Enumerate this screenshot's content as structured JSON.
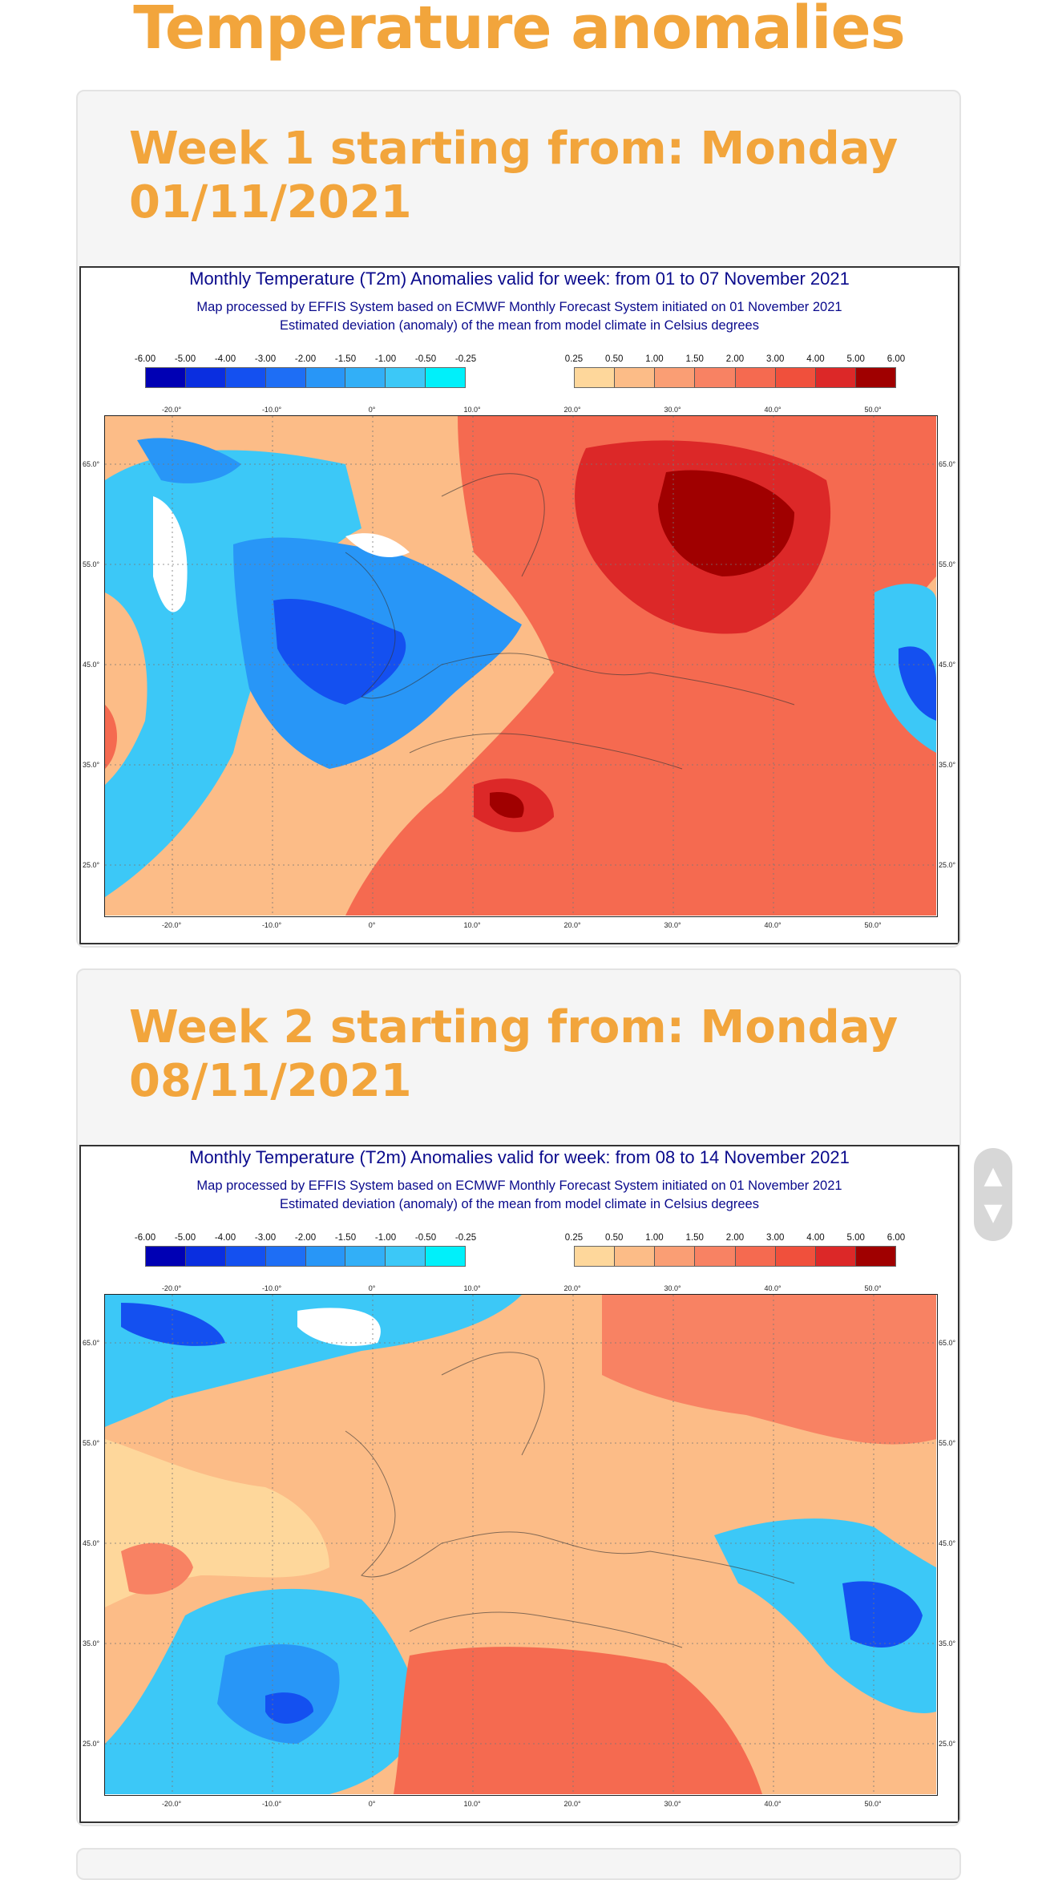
{
  "page": {
    "title": "Temperature anomalies"
  },
  "weeks": [
    {
      "card_title": "Week 1 starting from: Monday 01/11/2021",
      "figure": {
        "title": "Monthly Temperature (T2m) Anomalies valid for week: from 01 to 07 November 2021",
        "subtitle_1": "Map processed by EFFIS System based on ECMWF Monthly Forecast System initiated on 01 November 2021",
        "subtitle_2": "Estimated deviation (anomaly) of the mean from model climate in Celsius degrees"
      }
    },
    {
      "card_title": "Week 2 starting from: Monday 08/11/2021",
      "figure": {
        "title": "Monthly Temperature (T2m) Anomalies valid for week: from 08 to 14 November 2021",
        "subtitle_1": "Map processed by EFFIS System based on ECMWF Monthly Forecast System initiated on 01 November 2021",
        "subtitle_2": "Estimated deviation (anomaly) of the mean from model climate in Celsius degrees"
      }
    }
  ],
  "legend": {
    "negative_ticks": [
      "-6.00",
      "-5.00",
      "-4.00",
      "-3.00",
      "-2.00",
      "-1.50",
      "-1.00",
      "-0.50",
      "-0.25"
    ],
    "negative_colors": [
      "#0000b4",
      "#0a2ee0",
      "#1450f0",
      "#1e6ef5",
      "#2896f7",
      "#32aff7",
      "#3cc8f7",
      "#00f0fa"
    ],
    "positive_ticks": [
      "0.25",
      "0.50",
      "1.00",
      "1.50",
      "2.00",
      "3.00",
      "4.00",
      "5.00",
      "6.00"
    ],
    "positive_colors": [
      "#fed79b",
      "#fcbc87",
      "#fa9e74",
      "#f88263",
      "#f56a50",
      "#f0503c",
      "#dc2828",
      "#a00000"
    ]
  },
  "axes": {
    "lon_labels": [
      "-20.0°",
      "-10.0°",
      "0°",
      "10.0°",
      "20.0°",
      "30.0°",
      "40.0°",
      "50.0°"
    ],
    "lat_labels": [
      "65.0°",
      "55.0°",
      "45.0°",
      "35.0°",
      "25.0°"
    ]
  },
  "scroll": {
    "up_icon": "▲",
    "down_icon": "▼"
  }
}
